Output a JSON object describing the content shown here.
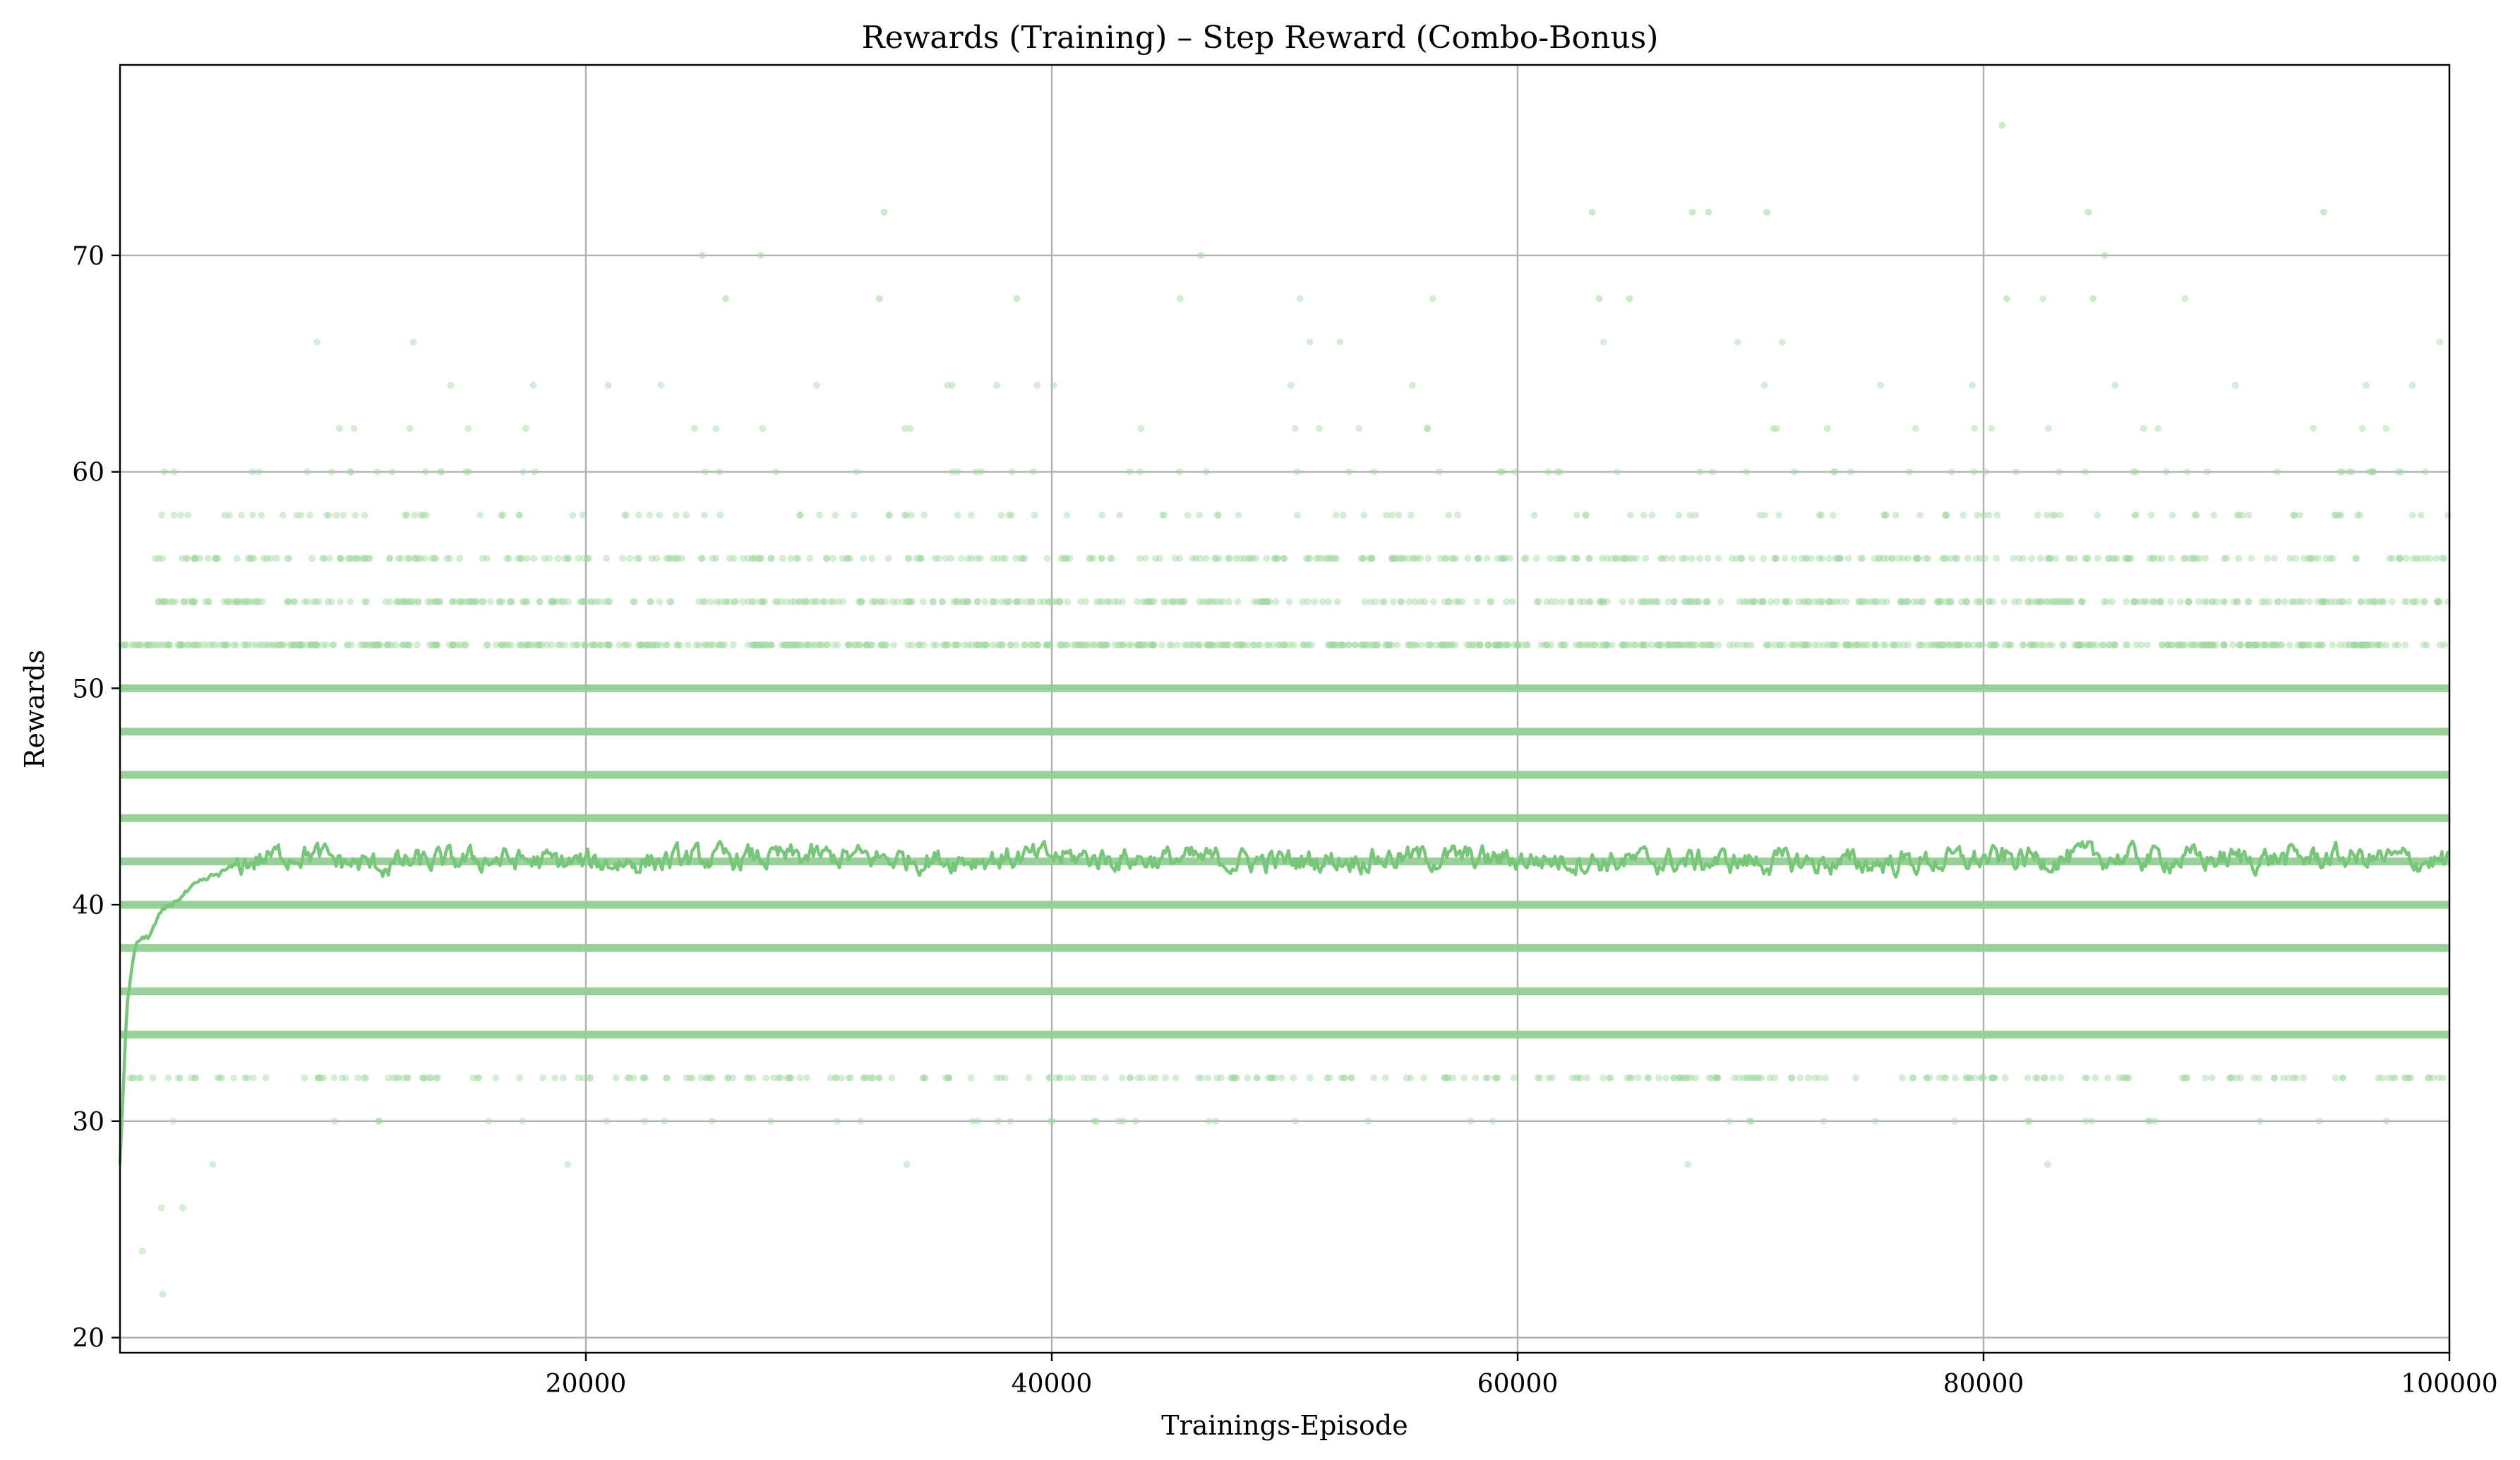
{
  "chart_data": {
    "type": "scatter",
    "title": "Rewards (Training) – Step Reward (Combo-Bonus)",
    "xlabel": "Trainings-Episode",
    "ylabel": "Rewards",
    "xlim": [
      0,
      100000
    ],
    "ylim": [
      19.3,
      78.8
    ],
    "grid": true,
    "xticks": [
      20000,
      40000,
      60000,
      80000,
      100000
    ],
    "xtick_labels": [
      "20000",
      "40000",
      "60000",
      "80000",
      "100000"
    ],
    "yticks": [
      20,
      30,
      40,
      50,
      60,
      70
    ],
    "ytick_labels": [
      "20",
      "30",
      "40",
      "50",
      "60",
      "70"
    ],
    "colors": {
      "points": "#9fd89f",
      "trend": "#78c679",
      "band": "#95cf95"
    },
    "series": [
      {
        "kind": "points",
        "reward_levels": [
          {
            "y": 22,
            "density": 0.0005
          },
          {
            "y": 24,
            "density": 0.0005
          },
          {
            "y": 26,
            "density": 0.001
          },
          {
            "y": 28,
            "density": 0.004
          },
          {
            "y": 30,
            "density": 0.05
          },
          {
            "y": 32,
            "density": 0.35
          },
          {
            "y": 34,
            "density": 1.0
          },
          {
            "y": 36,
            "density": 1.0
          },
          {
            "y": 38,
            "density": 1.0
          },
          {
            "y": 40,
            "density": 1.0
          },
          {
            "y": 42,
            "density": 1.0
          },
          {
            "y": 44,
            "density": 1.0
          },
          {
            "y": 46,
            "density": 1.0
          },
          {
            "y": 48,
            "density": 1.0
          },
          {
            "y": 50,
            "density": 1.0
          },
          {
            "y": 52,
            "density": 0.9
          },
          {
            "y": 54,
            "density": 0.6
          },
          {
            "y": 56,
            "density": 0.45
          },
          {
            "y": 58,
            "density": 0.15
          },
          {
            "y": 60,
            "density": 0.08
          },
          {
            "y": 62,
            "density": 0.03
          },
          {
            "y": 64,
            "density": 0.02
          },
          {
            "y": 66,
            "density": 0.008
          },
          {
            "y": 68,
            "density": 0.004
          }
        ],
        "outliers": [
          {
            "x": 80800,
            "y": 76
          },
          {
            "x": 32800,
            "y": 72
          },
          {
            "x": 63200,
            "y": 72
          },
          {
            "x": 67500,
            "y": 72
          },
          {
            "x": 68200,
            "y": 72
          },
          {
            "x": 70700,
            "y": 72
          },
          {
            "x": 84500,
            "y": 72
          },
          {
            "x": 94600,
            "y": 72
          },
          {
            "x": 25000,
            "y": 70
          },
          {
            "x": 27500,
            "y": 70
          },
          {
            "x": 46400,
            "y": 70
          },
          {
            "x": 85200,
            "y": 70
          },
          {
            "x": 26000,
            "y": 68
          },
          {
            "x": 32600,
            "y": 68
          },
          {
            "x": 38500,
            "y": 68
          },
          {
            "x": 63500,
            "y": 68
          },
          {
            "x": 64800,
            "y": 68
          },
          {
            "x": 81000,
            "y": 68
          },
          {
            "x": 84700,
            "y": 68
          }
        ]
      },
      {
        "kind": "line",
        "description_values": {
          "x": [
            0,
            300,
            700,
            1200,
            1800,
            2500,
            3200,
            4000,
            5000,
            6000,
            7000,
            8000,
            9000,
            10000,
            11000,
            12000,
            14000,
            16000,
            18000,
            20000,
            25000,
            30000,
            35000,
            40000,
            45000,
            50000,
            55000,
            60000,
            65000,
            70000,
            75000,
            80000,
            85000,
            90000,
            95000,
            100000
          ],
          "y": [
            28.0,
            35.5,
            38.3,
            38.5,
            39.6,
            40.3,
            40.8,
            41.3,
            41.8,
            42.1,
            42.3,
            42.4,
            42.1,
            41.9,
            41.8,
            41.9,
            42.0,
            42.1,
            42.0,
            41.9,
            42.1,
            42.2,
            42.1,
            42.2,
            42.1,
            42.0,
            42.2,
            42.1,
            42.0,
            42.0,
            41.9,
            42.1,
            42.2,
            42.1,
            42.2,
            42.0
          ]
        }
      }
    ]
  }
}
